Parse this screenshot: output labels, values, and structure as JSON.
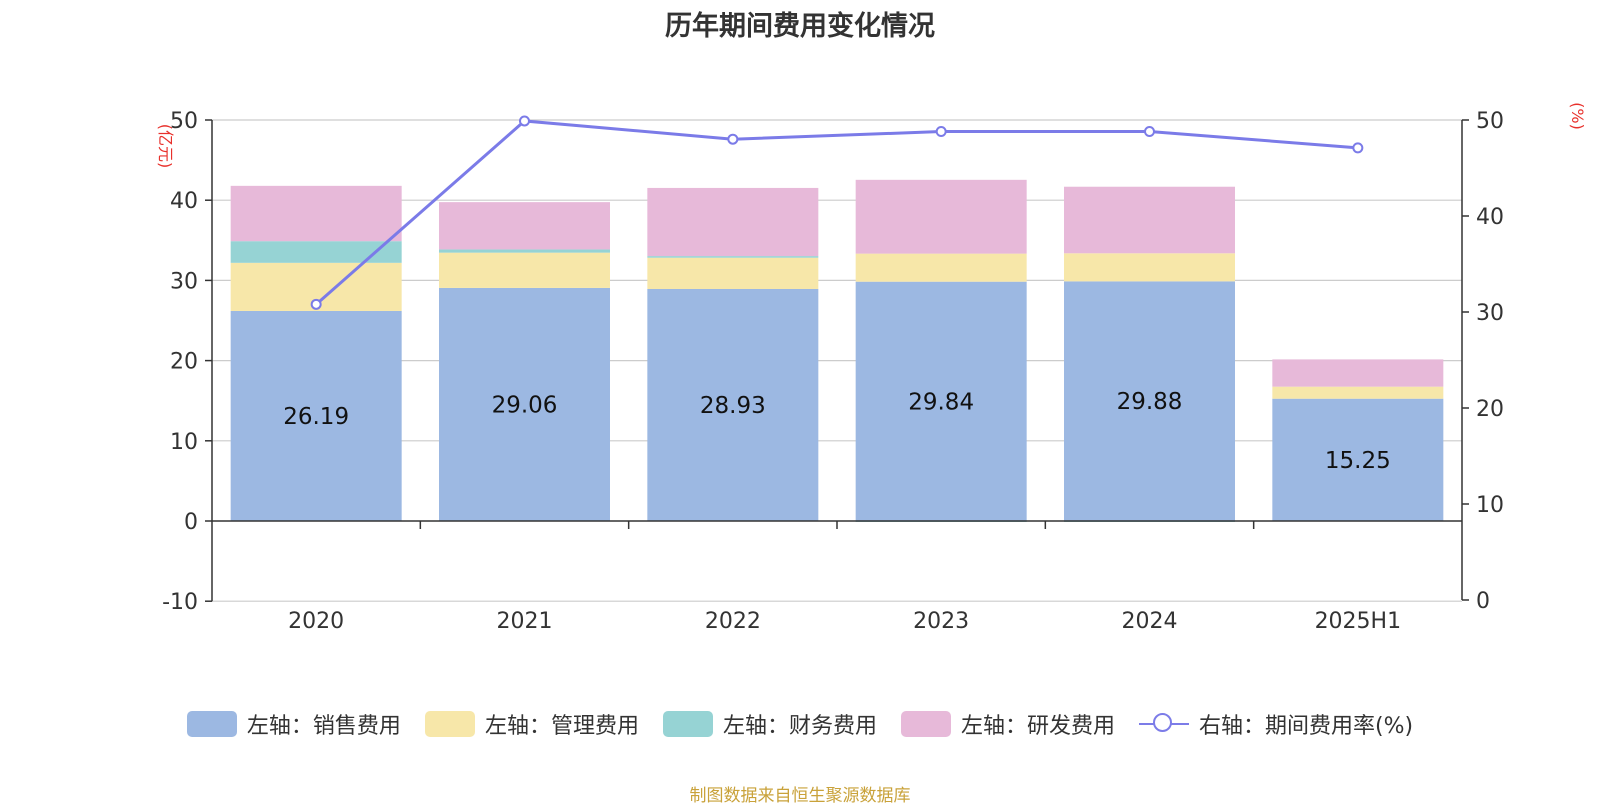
{
  "title": "历年期间费用变化情况",
  "source_note": "制图数据来自恒生聚源数据库",
  "colors": {
    "sales": "#9cb8e2",
    "admin": "#f7e7a9",
    "finance": "#96d3d4",
    "rd": "#e7b9d9",
    "ratio": "#7b7be8",
    "unit": "#e8312c"
  },
  "chart_data": {
    "type": "bar",
    "stacked": true,
    "categories": [
      "2020",
      "2021",
      "2022",
      "2023",
      "2024",
      "2025H1"
    ],
    "series": [
      {
        "name": "左轴：销售费用",
        "axis": "left",
        "values": [
          26.19,
          29.06,
          28.93,
          29.84,
          29.88,
          15.25
        ],
        "data_labels": [
          "26.19",
          "29.06",
          "28.93",
          "29.84",
          "29.88",
          "15.25"
        ]
      },
      {
        "name": "左轴：管理费用",
        "axis": "left",
        "values": [
          6.0,
          4.4,
          3.9,
          3.5,
          3.5,
          1.5
        ]
      },
      {
        "name": "左轴：财务费用",
        "axis": "left",
        "values": [
          2.7,
          0.4,
          0.2,
          -0.1,
          -0.1,
          0.0
        ]
      },
      {
        "name": "左轴：研发费用",
        "axis": "left",
        "values": [
          6.9,
          5.9,
          8.5,
          9.2,
          8.3,
          3.4
        ]
      },
      {
        "name": "右轴：期间费用率(%)",
        "axis": "right",
        "type": "line",
        "values": [
          30.8,
          49.9,
          48.0,
          48.8,
          48.8,
          47.1
        ]
      }
    ],
    "left_axis": {
      "unit": "(亿元)",
      "min": -10,
      "max": 50,
      "ticks": [
        -10,
        0,
        10,
        20,
        30,
        40,
        50
      ]
    },
    "right_axis": {
      "unit": "(%)",
      "min": 0,
      "max": 50,
      "ticks": [
        0,
        10,
        20,
        30,
        40,
        50
      ]
    },
    "grid": true,
    "legend_position": "bottom"
  }
}
